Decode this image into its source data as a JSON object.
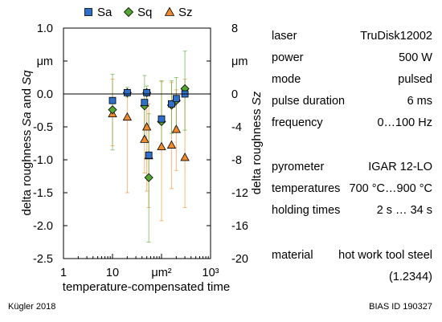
{
  "chart_data": {
    "type": "scatter",
    "xlabel": "temperature-compensated time",
    "ylabel_left_parts": [
      "delta roughness ",
      "Sa",
      " and ",
      "Sq"
    ],
    "ylabel_right_parts": [
      "delta roughness ",
      "Sz"
    ],
    "x_scale": "log",
    "xlim": [
      1,
      1000
    ],
    "x_ticks": [
      "1",
      "10",
      "μm²",
      "10³"
    ],
    "ylim_left": [
      -2.5,
      1.0
    ],
    "y_ticks_left": [
      "1.0",
      "μm",
      "0.0",
      "-0.5",
      "-1.0",
      "-1.5",
      "-2.0",
      "-2.5"
    ],
    "ylim_right": [
      -20,
      8
    ],
    "y_ticks_right": [
      "8",
      "μm",
      "0",
      "-4",
      "-8",
      "-12",
      "-16",
      "-20"
    ],
    "zero_line": true,
    "grid": false,
    "legend_position": "top",
    "series": [
      {
        "name": "Sa",
        "marker": "square",
        "color": "#2f6fc7",
        "axis": "left",
        "points": [
          {
            "x": 10,
            "y": -0.1,
            "lo": -0.1,
            "hi": -0.1
          },
          {
            "x": 20,
            "y": 0.02,
            "lo": 0.02,
            "hi": 0.02
          },
          {
            "x": 45,
            "y": -0.13,
            "lo": -0.13,
            "hi": -0.13
          },
          {
            "x": 50,
            "y": 0.02,
            "lo": 0.02,
            "hi": 0.02
          },
          {
            "x": 55,
            "y": -0.93,
            "lo": -0.93,
            "hi": -0.93
          },
          {
            "x": 100,
            "y": -0.38,
            "lo": -0.38,
            "hi": -0.38
          },
          {
            "x": 160,
            "y": -0.15,
            "lo": -0.15,
            "hi": -0.15
          },
          {
            "x": 200,
            "y": -0.07,
            "lo": -0.07,
            "hi": -0.07
          },
          {
            "x": 300,
            "y": 0.0,
            "lo": 0.0,
            "hi": 0.0
          }
        ]
      },
      {
        "name": "Sq",
        "marker": "diamond",
        "color": "#55a630",
        "axis": "left",
        "points": [
          {
            "x": 10,
            "y": -0.24,
            "lo": -0.85,
            "hi": 0.3
          },
          {
            "x": 20,
            "y": 0.02,
            "lo": -0.05,
            "hi": 0.1
          },
          {
            "x": 45,
            "y": -0.18,
            "lo": -0.65,
            "hi": 0.28
          },
          {
            "x": 50,
            "y": 0.02,
            "lo": -0.1,
            "hi": 0.12
          },
          {
            "x": 55,
            "y": -1.27,
            "lo": -2.25,
            "hi": -0.3
          },
          {
            "x": 100,
            "y": -0.42,
            "lo": -0.85,
            "hi": 0.2
          },
          {
            "x": 160,
            "y": -0.17,
            "lo": -0.6,
            "hi": 0.2
          },
          {
            "x": 200,
            "y": -0.1,
            "lo": -0.5,
            "hi": 0.25
          },
          {
            "x": 300,
            "y": 0.08,
            "lo": -0.55,
            "hi": 0.65
          }
        ]
      },
      {
        "name": "Sz",
        "marker": "triangle",
        "color": "#f08a2c",
        "axis": "right",
        "points": [
          {
            "x": 10,
            "y": -2.4,
            "lo": -6.3,
            "hi": 1.8
          },
          {
            "x": 20,
            "y": -2.8,
            "lo": -12.0,
            "hi": 0.2
          },
          {
            "x": 45,
            "y": -5.5,
            "lo": -9.6,
            "hi": -1.4
          },
          {
            "x": 50,
            "y": -4.0,
            "lo": -11.8,
            "hi": 0.1
          },
          {
            "x": 55,
            "y": -7.5,
            "lo": -13.8,
            "hi": -1.2
          },
          {
            "x": 100,
            "y": -6.4,
            "lo": -15.4,
            "hi": 1.5
          },
          {
            "x": 160,
            "y": -6.2,
            "lo": -11.5,
            "hi": 1.4
          },
          {
            "x": 200,
            "y": -4.3,
            "lo": -9.3,
            "hi": 0.5
          },
          {
            "x": 300,
            "y": -7.7,
            "lo": -13.8,
            "hi": 1.8
          }
        ]
      }
    ]
  },
  "info_rows": [
    {
      "key": "laser",
      "value": "TruDisk12002"
    },
    {
      "key": "power",
      "value": "500 W"
    },
    {
      "key": "mode",
      "value": "pulsed"
    },
    {
      "key": "pulse duration",
      "value": "6 ms"
    },
    {
      "key": "frequency",
      "value": "0…100 Hz"
    },
    {
      "key": "pyrometer",
      "value": "IGAR 12-LO"
    },
    {
      "key": "temperatures",
      "value": "700 °C…900 °C"
    },
    {
      "key": "holding times",
      "value": "2 s … 34 s"
    },
    {
      "key": "material",
      "value": "hot work tool steel"
    }
  ],
  "material_continued": "(1.2344)",
  "footer": {
    "left": "Kügler 2018",
    "right": "BIAS ID 190327"
  }
}
